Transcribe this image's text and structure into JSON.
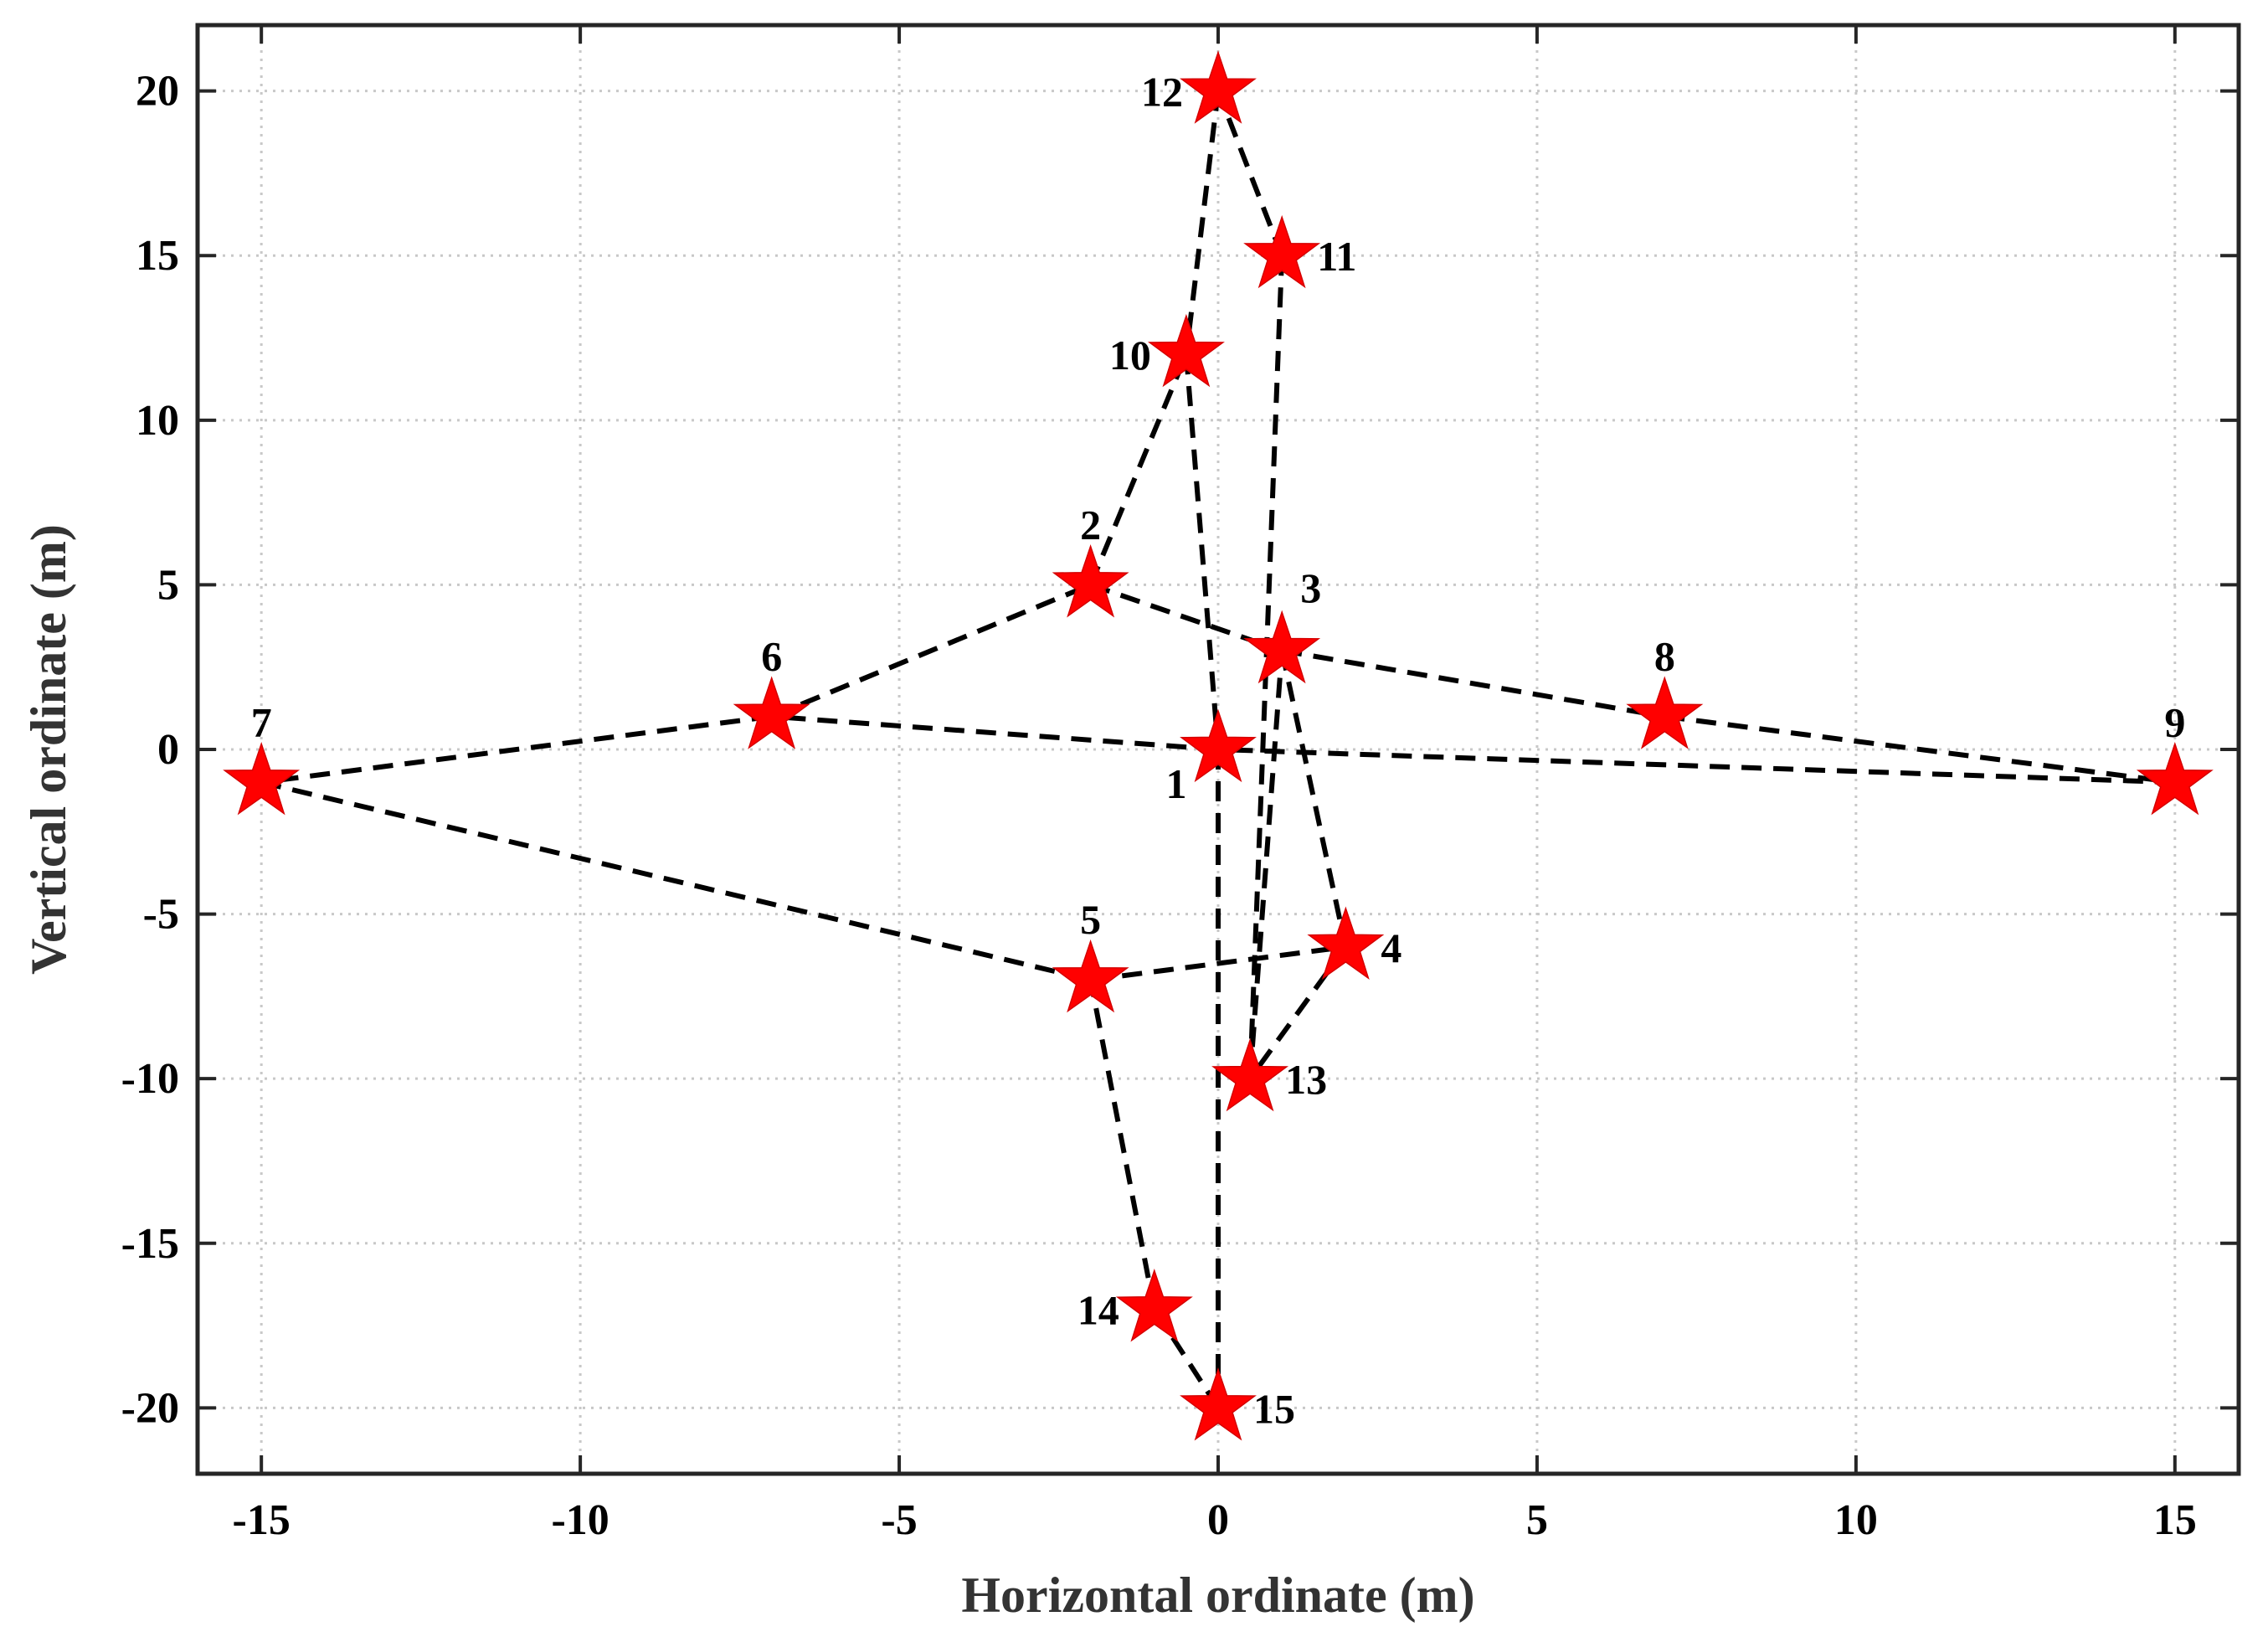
{
  "chart_data": {
    "type": "scatter",
    "title": "",
    "xlabel": "Horizontal  ordinate (m)",
    "ylabel": "Vertical  ordinate (m)",
    "xlim": [
      -16,
      16
    ],
    "ylim": [
      -22,
      22
    ],
    "xticks": [
      -15,
      -10,
      -5,
      0,
      5,
      10,
      15
    ],
    "yticks": [
      -20,
      -15,
      -10,
      -5,
      0,
      5,
      10,
      15,
      20
    ],
    "grid": true,
    "marker": "pentagram",
    "colors": {
      "marker": "#ff0000",
      "line": "#000000",
      "grid": "#c8c8c8",
      "axes": "#262626"
    },
    "points": [
      {
        "id": "1",
        "x": 0,
        "y": 0,
        "label_pos": "bottom-left"
      },
      {
        "id": "2",
        "x": -2,
        "y": 5,
        "label_pos": "top"
      },
      {
        "id": "3",
        "x": 1,
        "y": 3,
        "label_pos": "top-right"
      },
      {
        "id": "4",
        "x": 2,
        "y": -6,
        "label_pos": "right"
      },
      {
        "id": "5",
        "x": -2,
        "y": -7,
        "label_pos": "top"
      },
      {
        "id": "6",
        "x": -7,
        "y": 1,
        "label_pos": "top"
      },
      {
        "id": "7",
        "x": -15,
        "y": -1,
        "label_pos": "top"
      },
      {
        "id": "8",
        "x": 7,
        "y": 1,
        "label_pos": "top"
      },
      {
        "id": "9",
        "x": 15,
        "y": -1,
        "label_pos": "top"
      },
      {
        "id": "10",
        "x": -0.5,
        "y": 12,
        "label_pos": "left"
      },
      {
        "id": "11",
        "x": 1,
        "y": 15,
        "label_pos": "right"
      },
      {
        "id": "12",
        "x": 0,
        "y": 20,
        "label_pos": "left"
      },
      {
        "id": "13",
        "x": 0.5,
        "y": -10,
        "label_pos": "right"
      },
      {
        "id": "14",
        "x": -1,
        "y": -17,
        "label_pos": "left"
      },
      {
        "id": "15",
        "x": 0,
        "y": -20,
        "label_pos": "right"
      }
    ],
    "edges": [
      [
        "2",
        "10"
      ],
      [
        "10",
        "1"
      ],
      [
        "1",
        "15"
      ],
      [
        "15",
        "14"
      ],
      [
        "14",
        "5"
      ],
      [
        "5",
        "4"
      ],
      [
        "4",
        "13"
      ],
      [
        "13",
        "3"
      ],
      [
        "3",
        "4"
      ],
      [
        "2",
        "3"
      ],
      [
        "3",
        "8"
      ],
      [
        "8",
        "9"
      ],
      [
        "9",
        "1"
      ],
      [
        "1",
        "6"
      ],
      [
        "6",
        "2"
      ],
      [
        "6",
        "7"
      ],
      [
        "7",
        "5"
      ],
      [
        "11",
        "12"
      ],
      [
        "12",
        "10"
      ],
      [
        "11",
        "13"
      ]
    ]
  }
}
